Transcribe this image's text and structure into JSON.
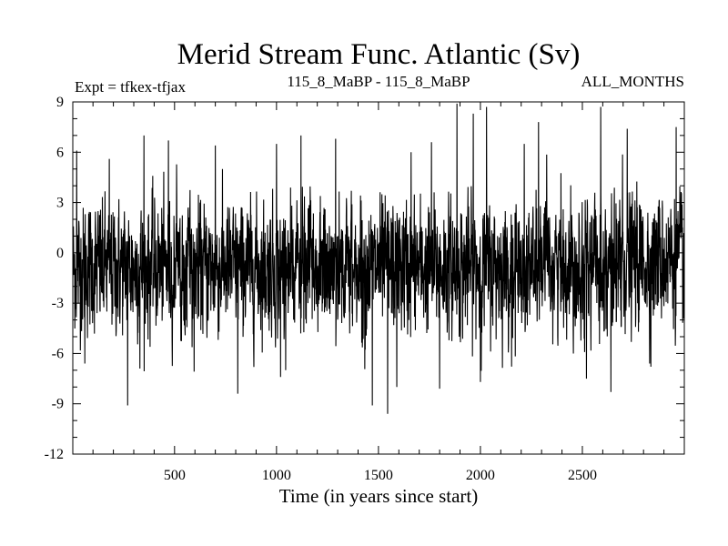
{
  "chart_data": {
    "type": "line",
    "title": "Merid Stream Func. Atlantic (Sv)",
    "subtitle_left": "Expt = tfkex-tfjax",
    "subtitle_center": "115_8_MaBP - 115_8_MaBP",
    "subtitle_right": "ALL_MONTHS",
    "xlabel": "Time (in years since start)",
    "ylabel": "",
    "xlim": [
      1,
      3000
    ],
    "ylim": [
      -12,
      9
    ],
    "x_ticks": [
      500,
      1000,
      1500,
      2000,
      2500
    ],
    "y_ticks": [
      9,
      6,
      3,
      0,
      -3,
      -6,
      -9,
      -12
    ],
    "grid": false,
    "series_color": "#000000",
    "series": [
      {
        "name": "",
        "x_start": 1,
        "x_step": 1,
        "count": 3000,
        "baseline": -0.9,
        "noise_std": 1.9,
        "values_summary": "annual noisy time series fluctuating roughly between -6 and 6 around a mean of about -0.9; rises slightly to about -0.3 toward the end",
        "peaks": [
          {
            "x": 20,
            "y": 6.1
          },
          {
            "x": 180,
            "y": 5.6
          },
          {
            "x": 350,
            "y": 7.0
          },
          {
            "x": 470,
            "y": 6.7
          },
          {
            "x": 700,
            "y": 6.4
          },
          {
            "x": 1000,
            "y": 6.5
          },
          {
            "x": 1120,
            "y": 7.0
          },
          {
            "x": 1290,
            "y": 6.8
          },
          {
            "x": 1660,
            "y": 6.0
          },
          {
            "x": 1760,
            "y": 6.6
          },
          {
            "x": 1885,
            "y": 8.9
          },
          {
            "x": 1965,
            "y": 8.3
          },
          {
            "x": 2030,
            "y": 8.7
          },
          {
            "x": 2215,
            "y": 6.5
          },
          {
            "x": 2285,
            "y": 7.8
          },
          {
            "x": 2590,
            "y": 8.7
          },
          {
            "x": 2720,
            "y": 7.4
          },
          {
            "x": 2960,
            "y": 7.5
          }
        ],
        "troughs": [
          {
            "x": 60,
            "y": -6.6
          },
          {
            "x": 270,
            "y": -9.1
          },
          {
            "x": 330,
            "y": -6.9
          },
          {
            "x": 810,
            "y": -8.4
          },
          {
            "x": 1020,
            "y": -7.4
          },
          {
            "x": 1470,
            "y": -9.1
          },
          {
            "x": 1545,
            "y": -9.6
          },
          {
            "x": 1590,
            "y": -8.0
          },
          {
            "x": 1800,
            "y": -8.1
          },
          {
            "x": 2000,
            "y": -7.7
          },
          {
            "x": 2520,
            "y": -7.5
          },
          {
            "x": 2640,
            "y": -8.3
          },
          {
            "x": 2830,
            "y": -6.6
          }
        ]
      }
    ]
  }
}
